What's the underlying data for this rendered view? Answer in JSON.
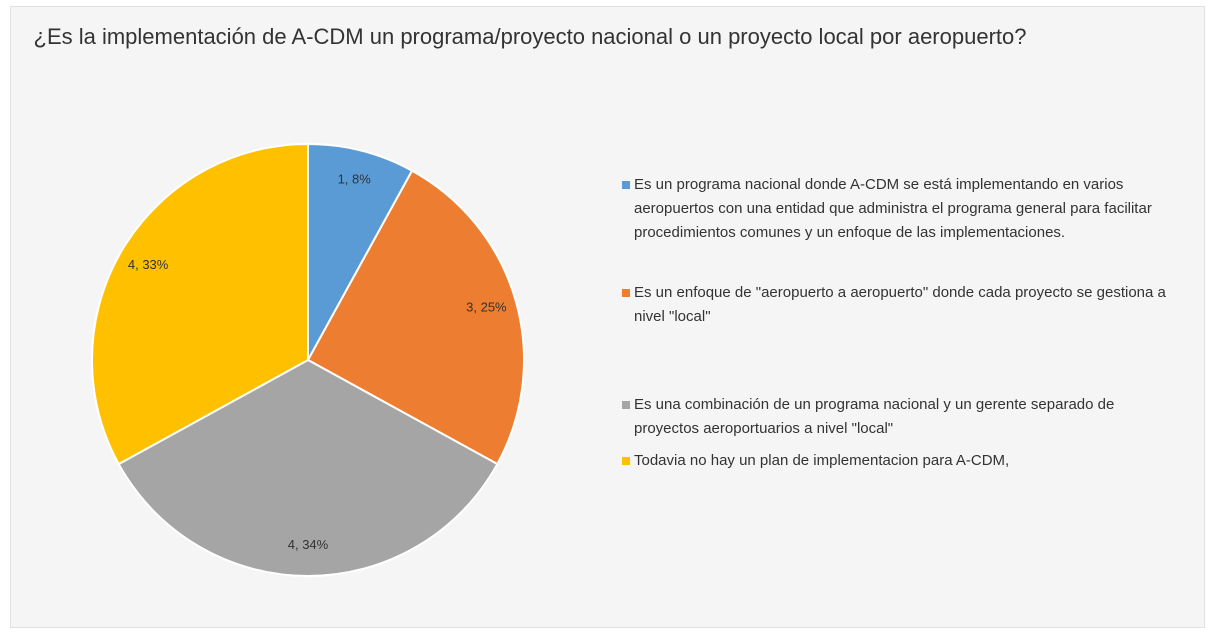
{
  "chart_data": {
    "type": "pie",
    "title": "¿Es la implementación de A-CDM un programa/proyecto nacional o un proyecto local por aeropuerto?",
    "categories": [
      "Es un programa nacional donde A-CDM se está implementando en varios aeropuertos con una entidad que administra el programa general para facilitar procedimientos comunes y un enfoque de las implementaciones.",
      "Es un enfoque de \"aeropuerto a aeropuerto\" donde cada proyecto se gestiona a nivel \"local\"",
      "Es una combinación de un programa nacional y un gerente separado de proyectos aeroportuarios a nivel \"local\"",
      "Todavia no hay un plan de implementacion para A-CDM,"
    ],
    "counts": [
      1,
      3,
      4,
      4
    ],
    "values": [
      8,
      25,
      34,
      33
    ],
    "value_labels": [
      "1, 8%",
      "3, 25%",
      "4, 34%",
      "4, 33%"
    ],
    "colors": [
      "#5b9bd5",
      "#ed7d31",
      "#a5a5a5",
      "#ffc000"
    ],
    "legend": "right"
  }
}
